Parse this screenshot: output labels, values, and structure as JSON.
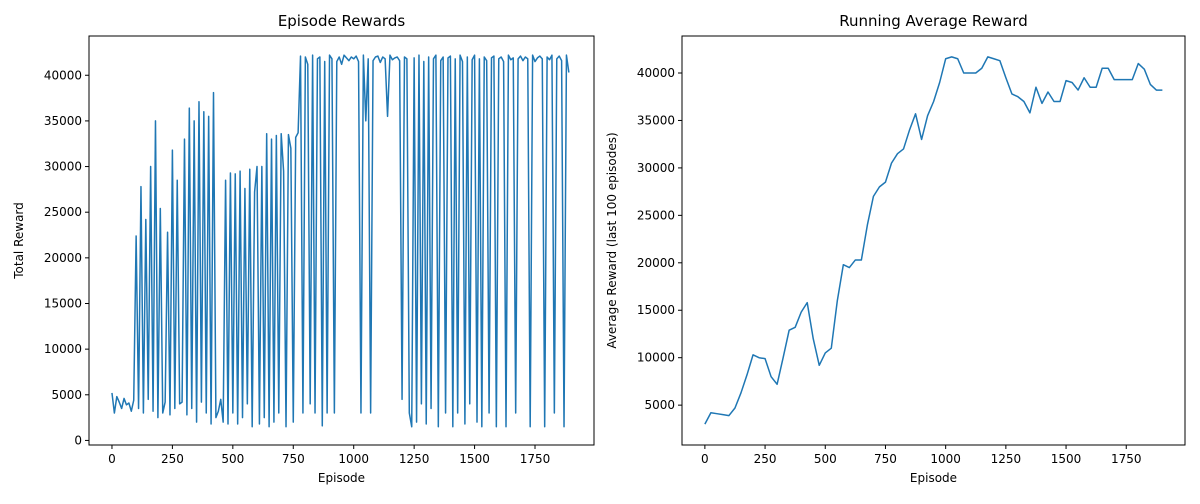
{
  "chart_data": [
    {
      "type": "line",
      "title": "Episode Rewards",
      "xlabel": "Episode",
      "ylabel": "Total Reward",
      "color": "#1f77b4",
      "xlim": [
        -95,
        1994
      ],
      "ylim": [
        -500,
        44300
      ],
      "xticks": [
        0,
        250,
        500,
        750,
        1000,
        1250,
        1500,
        1750
      ],
      "yticks": [
        0,
        5000,
        10000,
        15000,
        20000,
        25000,
        30000,
        35000,
        40000
      ],
      "x": [
        0,
        10,
        20,
        30,
        40,
        50,
        60,
        70,
        80,
        90,
        100,
        110,
        120,
        130,
        140,
        150,
        160,
        170,
        180,
        190,
        200,
        210,
        220,
        230,
        240,
        250,
        260,
        270,
        280,
        290,
        300,
        310,
        320,
        330,
        340,
        350,
        360,
        370,
        380,
        390,
        400,
        410,
        420,
        430,
        440,
        450,
        460,
        470,
        480,
        490,
        500,
        510,
        520,
        530,
        540,
        550,
        560,
        570,
        580,
        590,
        600,
        610,
        620,
        630,
        640,
        650,
        660,
        670,
        680,
        690,
        700,
        710,
        720,
        730,
        740,
        750,
        760,
        770,
        780,
        790,
        800,
        810,
        820,
        830,
        840,
        850,
        860,
        870,
        880,
        890,
        900,
        910,
        920,
        930,
        940,
        950,
        960,
        970,
        980,
        990,
        1000,
        1010,
        1020,
        1030,
        1040,
        1050,
        1060,
        1070,
        1080,
        1090,
        1100,
        1110,
        1120,
        1130,
        1140,
        1150,
        1160,
        1170,
        1180,
        1190,
        1200,
        1210,
        1220,
        1230,
        1240,
        1250,
        1260,
        1270,
        1280,
        1290,
        1300,
        1310,
        1320,
        1330,
        1340,
        1350,
        1360,
        1370,
        1380,
        1390,
        1400,
        1410,
        1420,
        1430,
        1440,
        1450,
        1460,
        1470,
        1480,
        1490,
        1500,
        1510,
        1520,
        1530,
        1540,
        1550,
        1560,
        1570,
        1580,
        1590,
        1600,
        1610,
        1620,
        1630,
        1640,
        1650,
        1660,
        1670,
        1680,
        1690,
        1700,
        1710,
        1720,
        1730,
        1740,
        1750,
        1760,
        1770,
        1780,
        1790,
        1800,
        1810,
        1820,
        1830,
        1840,
        1850,
        1860,
        1870,
        1880,
        1890
      ],
      "values": [
        5200,
        3000,
        4800,
        4200,
        3500,
        4600,
        3900,
        4100,
        3200,
        4400,
        22400,
        3500,
        27800,
        3000,
        24200,
        4500,
        30000,
        3200,
        35000,
        2500,
        25400,
        3000,
        4200,
        22800,
        2800,
        31800,
        3500,
        28500,
        4000,
        4200,
        33000,
        2800,
        36400,
        3500,
        35000,
        2000,
        37100,
        4200,
        36000,
        3000,
        35500,
        1800,
        38100,
        2500,
        3200,
        4500,
        2000,
        28500,
        1800,
        29300,
        3000,
        29200,
        1800,
        29500,
        2500,
        27600,
        4000,
        29700,
        1500,
        27200,
        30000,
        1800,
        30000,
        2500,
        33600,
        1500,
        33000,
        2000,
        33400,
        3000,
        33600,
        29500,
        1500,
        33500,
        32000,
        2000,
        33200,
        33700,
        42100,
        3000,
        42000,
        41200,
        4000,
        42200,
        3000,
        41800,
        42000,
        1600,
        41500,
        3000,
        42200,
        41800,
        3000,
        41500,
        42000,
        41200,
        42200,
        41900,
        41600,
        42000,
        41800,
        42100,
        41500,
        3000,
        42200,
        35000,
        41800,
        3000,
        41600,
        42000,
        42100,
        41400,
        42000,
        41800,
        35500,
        42200,
        41700,
        41900,
        42000,
        41600,
        4500,
        42000,
        41800,
        3000,
        1500,
        41900,
        2000,
        42200,
        4000,
        41500,
        1800,
        42000,
        3500,
        41800,
        42200,
        1500,
        41600,
        42000,
        3000,
        41900,
        42100,
        1500,
        41800,
        3000,
        42200,
        41500,
        1800,
        42000,
        4000,
        41700,
        42200,
        2000,
        41800,
        1500,
        42000,
        41600,
        3000,
        41900,
        42100,
        1500,
        41800,
        42000,
        41500,
        1500,
        42200,
        41700,
        41900,
        3000,
        41800,
        42100,
        41600,
        42000,
        41800,
        1500,
        42200,
        41500,
        41900,
        42100,
        41800,
        1500,
        42000,
        41700,
        42200,
        3000,
        41800,
        42100,
        41600,
        1500,
        42200,
        40300
      ]
    },
    {
      "type": "line",
      "title": "Running Average Reward",
      "xlabel": "Episode",
      "ylabel": "Average Reward (last 100 episodes)",
      "color": "#1f77b4",
      "xlim": [
        -95,
        1994
      ],
      "ylim": [
        800,
        43900
      ],
      "xticks": [
        0,
        250,
        500,
        750,
        1000,
        1250,
        1500,
        1750
      ],
      "yticks": [
        5000,
        10000,
        15000,
        20000,
        25000,
        30000,
        35000,
        40000
      ],
      "x": [
        0,
        25,
        50,
        75,
        100,
        125,
        150,
        175,
        200,
        225,
        250,
        275,
        300,
        325,
        350,
        375,
        400,
        425,
        450,
        475,
        500,
        525,
        550,
        575,
        600,
        625,
        650,
        675,
        700,
        725,
        750,
        775,
        800,
        825,
        850,
        875,
        900,
        925,
        950,
        975,
        1000,
        1025,
        1050,
        1075,
        1100,
        1125,
        1150,
        1175,
        1200,
        1225,
        1250,
        1275,
        1300,
        1325,
        1350,
        1375,
        1400,
        1425,
        1450,
        1475,
        1500,
        1525,
        1550,
        1575,
        1600,
        1625,
        1650,
        1675,
        1700,
        1725,
        1750,
        1775,
        1800,
        1825,
        1850,
        1875,
        1900
      ],
      "values": [
        3000,
        4200,
        4100,
        4000,
        3900,
        4700,
        6300,
        8200,
        10300,
        10000,
        9900,
        8000,
        7200,
        10000,
        12900,
        13200,
        14800,
        15800,
        12000,
        9200,
        10500,
        11000,
        16000,
        19800,
        19500,
        20300,
        20300,
        24000,
        27000,
        28000,
        28500,
        30500,
        31500,
        32000,
        34000,
        35700,
        33000,
        35500,
        37000,
        39000,
        41500,
        41700,
        41500,
        40000,
        40000,
        40000,
        40500,
        41700,
        41500,
        41300,
        39500,
        37800,
        37500,
        37000,
        35800,
        38500,
        36800,
        38000,
        37000,
        37000,
        39200,
        39000,
        38200,
        39500,
        38500,
        38500,
        40500,
        40500,
        39300,
        39300,
        39300,
        39300,
        41000,
        40400,
        38800,
        38200,
        38200
      ]
    }
  ]
}
